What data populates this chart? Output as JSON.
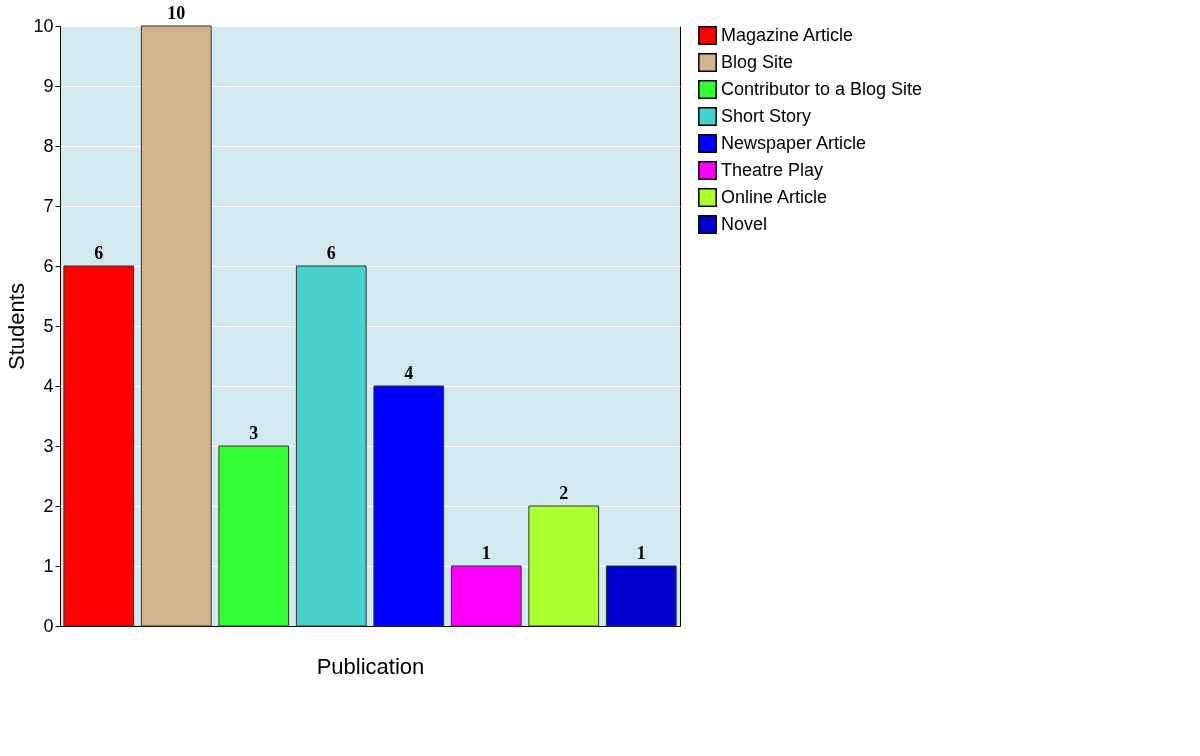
{
  "chart_data": {
    "type": "bar",
    "xlabel": "Publication",
    "ylabel": "Students",
    "categories": [
      null,
      null,
      null,
      null,
      null,
      null,
      null,
      null
    ],
    "series": [
      {
        "name": "Magazine Article",
        "color": "#ff0000",
        "values": [
          6,
          null,
          null,
          null,
          null,
          null,
          null,
          null
        ]
      },
      {
        "name": "Blog Site",
        "color": "#d2b48c",
        "values": [
          null,
          10,
          null,
          null,
          null,
          null,
          null,
          null
        ]
      },
      {
        "name": "Contributor to a Blog Site",
        "color": "#33ff33",
        "values": [
          null,
          null,
          3,
          null,
          null,
          null,
          null,
          null
        ]
      },
      {
        "name": "Short Story",
        "color": "#48d1cc",
        "values": [
          null,
          null,
          null,
          6,
          null,
          null,
          null,
          null
        ]
      },
      {
        "name": "Newspaper Article",
        "color": "#0000ff",
        "values": [
          null,
          null,
          null,
          null,
          4,
          null,
          null,
          null
        ]
      },
      {
        "name": "Theatre Play",
        "color": "#ff00ff",
        "values": [
          null,
          null,
          null,
          null,
          null,
          1,
          null,
          null
        ]
      },
      {
        "name": "Online Article",
        "color": "#adff2f",
        "values": [
          null,
          null,
          null,
          null,
          null,
          null,
          2,
          null
        ]
      },
      {
        "name": "Novel",
        "color": "#0000cc",
        "values": [
          null,
          null,
          null,
          null,
          null,
          null,
          null,
          1
        ]
      }
    ],
    "ylim": [
      0,
      10
    ],
    "yticks": [
      0,
      1,
      2,
      3,
      4,
      5,
      6,
      7,
      8,
      9,
      10
    ],
    "grid": "y",
    "legend": "right",
    "tick_labels": "y",
    "data_labels": true
  }
}
